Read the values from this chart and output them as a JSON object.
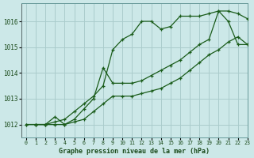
{
  "bg_color": "#cce8e8",
  "grid_color": "#aacccc",
  "line_color": "#1a5c1a",
  "xlabel": "Graphe pression niveau de la mer (hPa)",
  "xlim": [
    -0.5,
    23
  ],
  "ylim": [
    1011.5,
    1016.7
  ],
  "yticks": [
    1012,
    1013,
    1014,
    1015,
    1016
  ],
  "xticks": [
    0,
    1,
    2,
    3,
    4,
    5,
    6,
    7,
    8,
    9,
    10,
    11,
    12,
    13,
    14,
    15,
    16,
    17,
    18,
    19,
    20,
    21,
    22,
    23
  ],
  "series1_x": [
    0,
    1,
    2,
    3,
    4,
    5,
    6,
    7,
    8,
    9,
    10,
    11,
    12,
    13,
    14,
    15,
    16,
    17,
    18,
    19,
    20,
    21,
    22,
    23
  ],
  "series1_y": [
    1012.0,
    1012.0,
    1012.0,
    1012.1,
    1012.2,
    1012.5,
    1012.8,
    1013.1,
    1013.5,
    1014.9,
    1015.3,
    1015.5,
    1016.0,
    1016.0,
    1015.7,
    1015.8,
    1016.2,
    1016.2,
    1016.2,
    1016.3,
    1016.4,
    1016.0,
    1015.1,
    1015.1
  ],
  "series2_x": [
    0,
    1,
    2,
    3,
    4,
    5,
    6,
    7,
    8,
    9,
    10,
    11,
    12,
    13,
    14,
    15,
    16,
    17,
    18,
    19,
    20,
    21,
    22,
    23
  ],
  "series2_y": [
    1012.0,
    1012.0,
    1012.0,
    1012.0,
    1012.0,
    1012.1,
    1012.2,
    1012.5,
    1012.8,
    1013.1,
    1013.1,
    1013.1,
    1013.2,
    1013.3,
    1013.4,
    1013.6,
    1013.8,
    1014.1,
    1014.4,
    1014.7,
    1014.9,
    1015.2,
    1015.4,
    1015.1
  ],
  "series3_x": [
    1,
    2,
    3,
    4,
    5,
    6,
    7,
    8,
    9,
    10,
    11,
    12,
    13,
    14,
    15,
    16,
    17,
    18,
    19,
    20,
    21,
    22,
    23
  ],
  "series3_y": [
    1012.0,
    1012.0,
    1012.3,
    1012.0,
    1012.2,
    1012.6,
    1013.0,
    1014.2,
    1013.6,
    1013.6,
    1013.6,
    1013.7,
    1013.9,
    1014.1,
    1014.3,
    1014.5,
    1014.8,
    1015.1,
    1015.3,
    1016.4,
    1016.4,
    1016.3,
    1016.1
  ]
}
